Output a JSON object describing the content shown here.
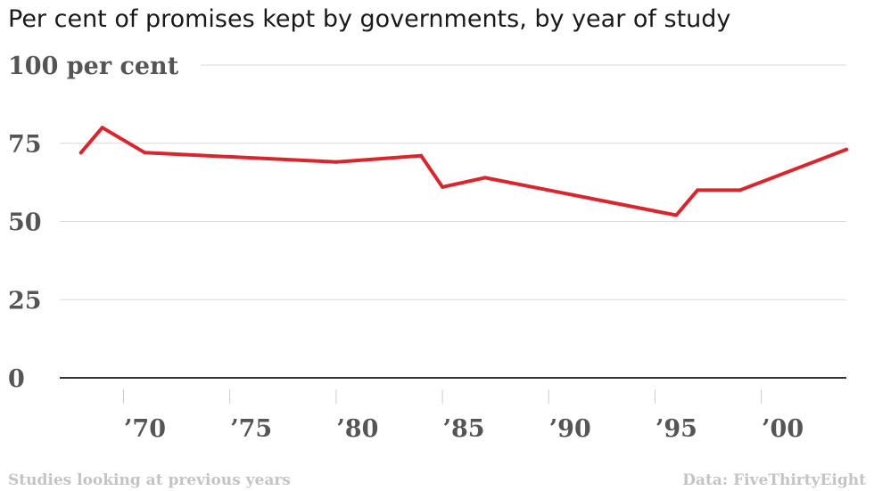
{
  "chart_data": {
    "type": "line",
    "title": "Per cent of promises kept by governments, by year of study",
    "ylabel": "per cent",
    "ylim": [
      0,
      100
    ],
    "xlim": [
      1967,
      2004
    ],
    "yticks": [
      {
        "value": 100,
        "label": "100 per cent"
      },
      {
        "value": 75,
        "label": "75"
      },
      {
        "value": 50,
        "label": "50"
      },
      {
        "value": 25,
        "label": "25"
      },
      {
        "value": 0,
        "label": "0"
      }
    ],
    "xticks": [
      {
        "value": 1970,
        "label": "’70"
      },
      {
        "value": 1975,
        "label": "’75"
      },
      {
        "value": 1980,
        "label": "’80"
      },
      {
        "value": 1985,
        "label": "’85"
      },
      {
        "value": 1990,
        "label": "’90"
      },
      {
        "value": 1995,
        "label": "’95"
      },
      {
        "value": 2000,
        "label": "’00"
      }
    ],
    "series": [
      {
        "name": "Promises kept",
        "color": "#d7262e",
        "x": [
          1968,
          1969,
          1971,
          1980,
          1984,
          1985,
          1987,
          1996,
          1997,
          1999,
          2004
        ],
        "values": [
          72,
          80,
          72,
          69,
          71,
          61,
          64,
          52,
          60,
          60,
          73
        ]
      }
    ]
  },
  "footer": {
    "left": "Studies looking at previous years",
    "right": "Data: FiveThirtyEight"
  }
}
